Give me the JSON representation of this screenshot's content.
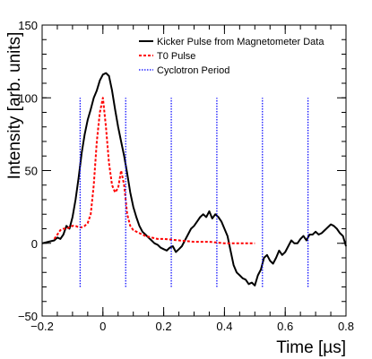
{
  "chart_data": {
    "type": "line",
    "xlabel": "Time [µs]",
    "ylabel": "Intensity [arb. units]",
    "xlim": [
      -0.2,
      0.8
    ],
    "ylim": [
      -50,
      150
    ],
    "x_ticks": [
      -0.2,
      0.0,
      0.2,
      0.4,
      0.6,
      0.8
    ],
    "x_tick_labels": [
      "−0.2",
      "0",
      "0.2",
      "0.4",
      "0.6",
      "0.8"
    ],
    "y_ticks": [
      -50,
      0,
      50,
      100,
      150
    ],
    "y_tick_labels": [
      "−50",
      "0",
      "50",
      "100",
      "150"
    ],
    "legend_position": "top-right",
    "series": [
      {
        "name": "Kicker Pulse from Magnetometer Data",
        "style": "solid",
        "color": "#000000",
        "x": [
          -0.2,
          -0.18,
          -0.16,
          -0.15,
          -0.14,
          -0.13,
          -0.12,
          -0.11,
          -0.1,
          -0.09,
          -0.08,
          -0.07,
          -0.06,
          -0.05,
          -0.04,
          -0.03,
          -0.02,
          -0.01,
          0.0,
          0.01,
          0.02,
          0.03,
          0.04,
          0.05,
          0.06,
          0.07,
          0.08,
          0.09,
          0.1,
          0.11,
          0.12,
          0.13,
          0.14,
          0.15,
          0.16,
          0.17,
          0.18,
          0.19,
          0.2,
          0.21,
          0.22,
          0.23,
          0.24,
          0.25,
          0.26,
          0.27,
          0.28,
          0.29,
          0.3,
          0.31,
          0.32,
          0.33,
          0.34,
          0.35,
          0.36,
          0.37,
          0.38,
          0.39,
          0.4,
          0.41,
          0.42,
          0.43,
          0.44,
          0.45,
          0.46,
          0.47,
          0.48,
          0.49,
          0.5,
          0.51,
          0.52,
          0.53,
          0.54,
          0.55,
          0.56,
          0.57,
          0.58,
          0.59,
          0.6,
          0.61,
          0.62,
          0.63,
          0.64,
          0.65,
          0.66,
          0.67,
          0.68,
          0.69,
          0.7,
          0.71,
          0.72,
          0.73,
          0.74,
          0.75,
          0.76,
          0.77,
          0.78,
          0.79,
          0.8
        ],
        "y": [
          0,
          1,
          2,
          4,
          3,
          6,
          12,
          10,
          18,
          30,
          45,
          62,
          75,
          85,
          92,
          100,
          105,
          112,
          116,
          117,
          115,
          105,
          92,
          80,
          70,
          60,
          48,
          35,
          25,
          18,
          12,
          8,
          6,
          4,
          2,
          0,
          -1,
          -3,
          -4,
          -5,
          -3,
          -2,
          -6,
          -4,
          -2,
          2,
          6,
          10,
          12,
          15,
          18,
          20,
          18,
          22,
          17,
          20,
          18,
          15,
          10,
          5,
          -5,
          -15,
          -20,
          -22,
          -24,
          -25,
          -28,
          -27,
          -29,
          -22,
          -18,
          -10,
          -8,
          -12,
          -14,
          -10,
          -5,
          -8,
          -6,
          -2,
          2,
          0,
          0,
          3,
          5,
          2,
          6,
          6,
          8,
          6,
          7,
          9,
          11,
          13,
          12,
          10,
          7,
          5,
          -2
        ]
      },
      {
        "name": "T0 Pulse",
        "style": "dashed",
        "color": "#ff0000",
        "x": [
          -0.16,
          -0.15,
          -0.14,
          -0.13,
          -0.12,
          -0.11,
          -0.1,
          -0.09,
          -0.08,
          -0.07,
          -0.06,
          -0.05,
          -0.04,
          -0.03,
          -0.02,
          -0.01,
          0.0,
          0.01,
          0.02,
          0.03,
          0.04,
          0.05,
          0.06,
          0.07,
          0.08,
          0.09,
          0.1,
          0.12,
          0.14,
          0.16,
          0.18,
          0.2,
          0.25,
          0.3,
          0.35,
          0.4,
          0.45,
          0.5
        ],
        "y": [
          3,
          6,
          9,
          10,
          10,
          11,
          12,
          12,
          11,
          11,
          12,
          14,
          20,
          40,
          70,
          90,
          100,
          80,
          55,
          40,
          35,
          38,
          50,
          40,
          20,
          12,
          9,
          7,
          5,
          4,
          3,
          3,
          2,
          1,
          1,
          0,
          0,
          0
        ]
      },
      {
        "name": "Cyclotron Period",
        "style": "dotted",
        "color": "#0000ff",
        "x_lines": [
          -0.075,
          0.075,
          0.225,
          0.375,
          0.525,
          0.675
        ],
        "y_range": [
          -30,
          100
        ]
      }
    ]
  }
}
